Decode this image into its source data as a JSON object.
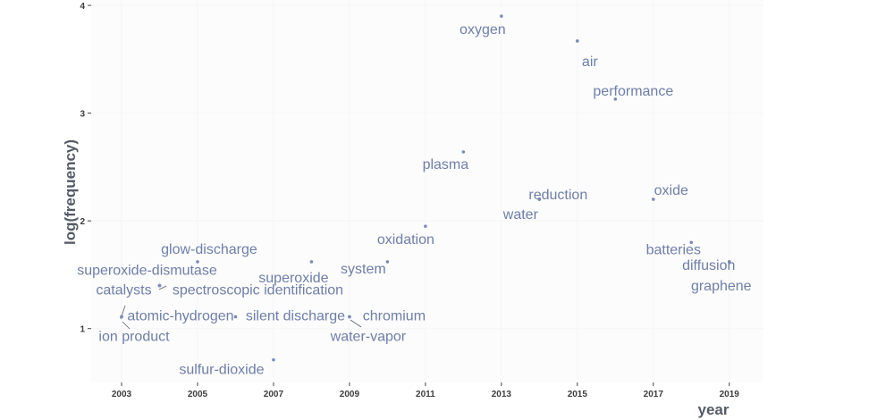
{
  "chart_data": {
    "type": "scatter",
    "title": "",
    "xlabel": "year",
    "ylabel": "log(frequency)",
    "xlim": [
      2002.2,
      2019.9
    ],
    "ylim": [
      0.5,
      4.05
    ],
    "x_ticks": [
      2003,
      2005,
      2007,
      2009,
      2011,
      2013,
      2015,
      2017,
      2019
    ],
    "y_ticks": [
      1,
      2,
      3,
      4
    ],
    "grid": false,
    "point_color": "#7b8cb5",
    "label_color": "#6e7ea6",
    "points": [
      {
        "term": "oxygen",
        "x": 2013,
        "y": 3.9
      },
      {
        "term": "air",
        "x": 2015,
        "y": 3.67
      },
      {
        "term": "performance",
        "x": 2016,
        "y": 3.13
      },
      {
        "term": "plasma",
        "x": 2012,
        "y": 2.64
      },
      {
        "term": "reduction",
        "x": 2014,
        "y": 2.2
      },
      {
        "term": "water",
        "x": 2014,
        "y": 2.2
      },
      {
        "term": "oxide",
        "x": 2017,
        "y": 2.2
      },
      {
        "term": "oxidation",
        "x": 2011,
        "y": 1.95
      },
      {
        "term": "batteries",
        "x": 2018,
        "y": 1.8
      },
      {
        "term": "system",
        "x": 2010,
        "y": 1.62
      },
      {
        "term": "diffusion",
        "x": 2019,
        "y": 1.62
      },
      {
        "term": "graphene",
        "x": 2019,
        "y": 1.62
      },
      {
        "term": "glow-discharge",
        "x": 2005,
        "y": 1.62
      },
      {
        "term": "superoxide",
        "x": 2008,
        "y": 1.62
      },
      {
        "term": "superoxide-dismutase",
        "x": 2004,
        "y": 1.4
      },
      {
        "term": "catalysts",
        "x": 2004,
        "y": 1.4
      },
      {
        "term": "spectroscopic identification",
        "x": 2004,
        "y": 1.4
      },
      {
        "term": "atomic-hydrogen",
        "x": 2003,
        "y": 1.11
      },
      {
        "term": "silent discharge",
        "x": 2006,
        "y": 1.11
      },
      {
        "term": "chromium",
        "x": 2009,
        "y": 1.11
      },
      {
        "term": "ion product",
        "x": 2003,
        "y": 1.11
      },
      {
        "term": "water-vapor",
        "x": 2009,
        "y": 1.11
      },
      {
        "term": "sulfur-dioxide",
        "x": 2007,
        "y": 0.71
      }
    ]
  }
}
